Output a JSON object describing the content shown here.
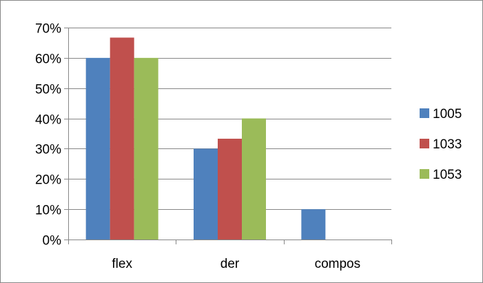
{
  "chart_data": {
    "type": "bar",
    "title": "",
    "xlabel": "",
    "ylabel": "",
    "categories": [
      "flex",
      "der",
      "compos"
    ],
    "series": [
      {
        "name": "1005",
        "color": "#4F81BD",
        "values": [
          0.6,
          0.3,
          0.1
        ]
      },
      {
        "name": "1033",
        "color": "#C0504D",
        "values": [
          0.667,
          0.333,
          0
        ]
      },
      {
        "name": "1053",
        "color": "#9BBB59",
        "values": [
          0.6,
          0.4,
          0
        ]
      }
    ],
    "ylim": [
      0,
      0.7
    ],
    "yticks": [
      0,
      0.1,
      0.2,
      0.3,
      0.4,
      0.5,
      0.6,
      0.7
    ],
    "ytick_labels": [
      "0%",
      "10%",
      "20%",
      "30%",
      "40%",
      "50%",
      "60%",
      "70%"
    ],
    "grid": true,
    "legend_position": "right"
  }
}
